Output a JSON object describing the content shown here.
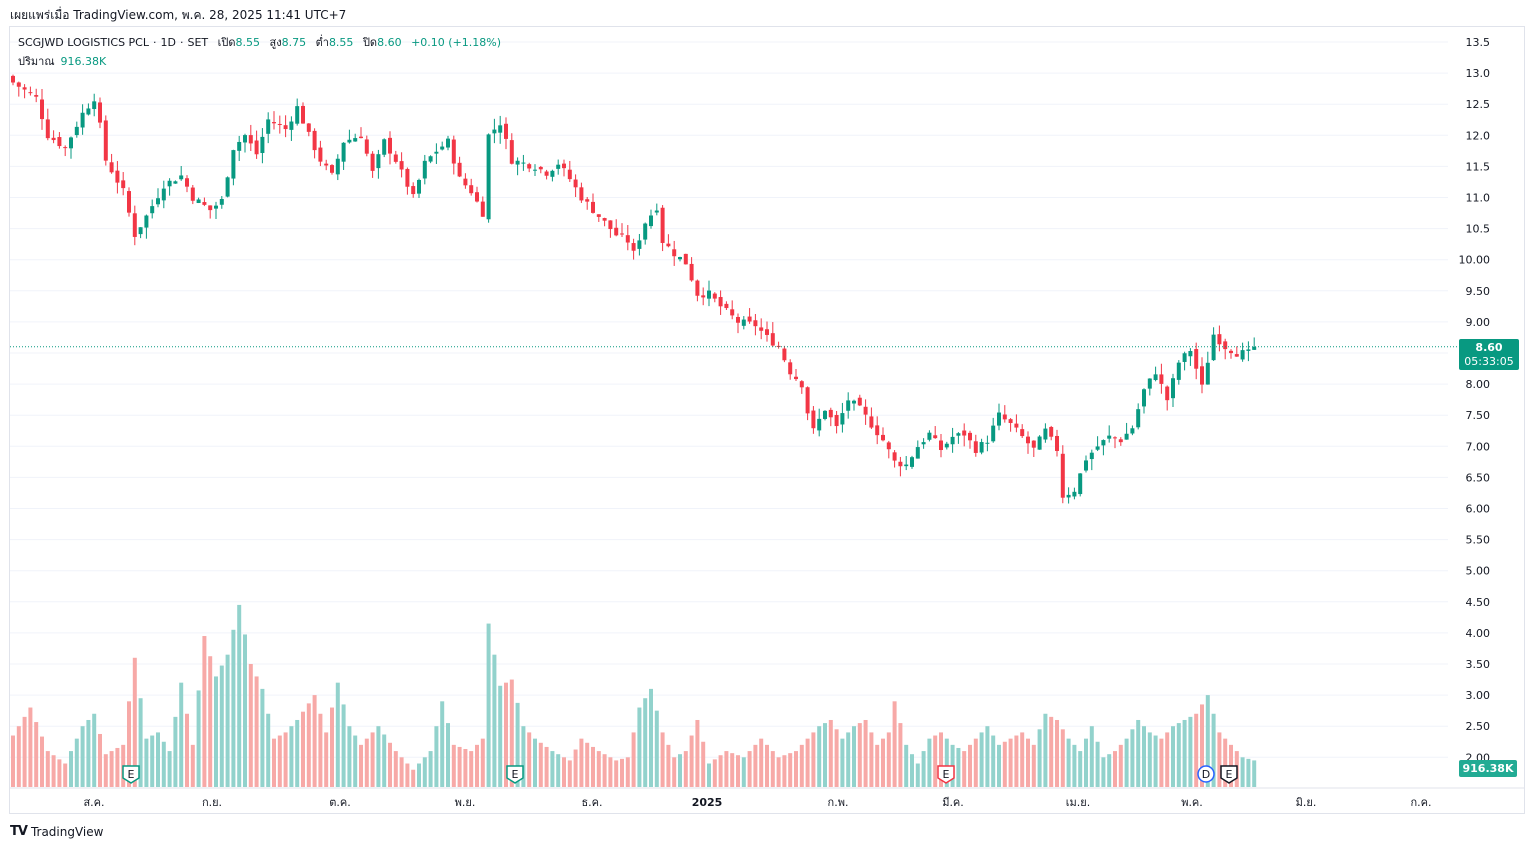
{
  "published": "เผยแพร่เมื่อ TradingView.com, พ.ค. 28, 2025 11:41 UTC+7",
  "legend": {
    "symbol": "SCGJWD LOGISTICS PCL",
    "interval": "1D",
    "exchange": "SET",
    "open_label": "เปิด",
    "open": "8.55",
    "high_label": "สูง",
    "high": "8.75",
    "low_label": "ต่ำ",
    "low": "8.55",
    "close_label": "ปิด",
    "close": "8.60",
    "change": "+0.10 (+1.18%)",
    "volume_label": "ปริมาณ",
    "volume": "916.38K"
  },
  "price_tag": {
    "price": "8.60",
    "countdown": "05:33:05"
  },
  "volume_tag": "916.38K",
  "brand": {
    "logo": "TV",
    "name": "TradingView"
  },
  "colors": {
    "up": "#089981",
    "down": "#f23645",
    "up_vol": "#92d2cc",
    "down_vol": "#f7a9a7",
    "grid": "#f0f3fa"
  },
  "chart_data": {
    "type": "candlestick",
    "y_axis": {
      "ticks": [
        "13.5",
        "13.0",
        "12.5",
        "12.0",
        "11.5",
        "11.0",
        "10.5",
        "10.00",
        "9.50",
        "9.00",
        "8.50",
        "8.00",
        "7.50",
        "7.00",
        "6.50",
        "6.00",
        "5.50",
        "5.00",
        "4.50",
        "4.00",
        "3.50",
        "3.00",
        "2.50",
        "2.00"
      ],
      "range": [
        1.5,
        13.75
      ]
    },
    "x_axis": {
      "ticks": [
        "ส.ค.",
        "ก.ย.",
        "ต.ค.",
        "พ.ย.",
        "ธ.ค.",
        "2025",
        "ก.พ.",
        "มี.ค.",
        "เม.ย.",
        "พ.ค.",
        "มิ.ย.",
        "ก.ค."
      ]
    },
    "last_price": 8.6,
    "events": [
      {
        "label": "E",
        "kind": "earnings",
        "near": "ส.ค."
      },
      {
        "label": "E",
        "kind": "earnings",
        "near": "พ.ย."
      },
      {
        "label": "E",
        "kind": "earnings",
        "near": "มี.ค."
      },
      {
        "label": "D",
        "kind": "dividend",
        "near": "พ.ค."
      },
      {
        "label": "E",
        "kind": "earnings",
        "near": "พ.ค."
      }
    ],
    "close_path": [
      [
        0,
        12.85
      ],
      [
        4,
        12.6
      ],
      [
        6,
        12.0
      ],
      [
        9,
        11.8
      ],
      [
        12,
        12.35
      ],
      [
        14,
        12.6
      ],
      [
        15,
        12.15
      ],
      [
        16,
        11.6
      ],
      [
        19,
        11.1
      ],
      [
        21,
        10.4
      ],
      [
        23,
        10.7
      ],
      [
        26,
        11.2
      ],
      [
        29,
        11.35
      ],
      [
        31,
        11.0
      ],
      [
        34,
        10.8
      ],
      [
        36,
        10.95
      ],
      [
        38,
        11.8
      ],
      [
        40,
        12.0
      ],
      [
        42,
        11.7
      ],
      [
        44,
        12.25
      ],
      [
        47,
        12.1
      ],
      [
        49,
        12.45
      ],
      [
        51,
        12.0
      ],
      [
        53,
        11.6
      ],
      [
        55,
        11.35
      ],
      [
        57,
        11.9
      ],
      [
        60,
        12.0
      ],
      [
        62,
        11.4
      ],
      [
        64,
        11.9
      ],
      [
        66,
        11.6
      ],
      [
        69,
        11.0
      ],
      [
        71,
        11.55
      ],
      [
        73,
        11.75
      ],
      [
        75,
        11.9
      ],
      [
        77,
        11.3
      ],
      [
        79,
        11.1
      ],
      [
        81,
        10.75
      ],
      [
        82,
        12.0
      ],
      [
        84,
        12.2
      ],
      [
        86,
        11.6
      ],
      [
        88,
        11.55
      ],
      [
        90,
        11.5
      ],
      [
        92,
        11.4
      ],
      [
        94,
        11.55
      ],
      [
        96,
        11.3
      ],
      [
        98,
        11.0
      ],
      [
        100,
        10.8
      ],
      [
        102,
        10.6
      ],
      [
        104,
        10.4
      ],
      [
        106,
        10.3
      ],
      [
        107,
        10.1
      ],
      [
        109,
        10.6
      ],
      [
        111,
        10.85
      ],
      [
        112,
        10.3
      ],
      [
        114,
        10.1
      ],
      [
        116,
        9.95
      ],
      [
        118,
        9.45
      ],
      [
        120,
        9.45
      ],
      [
        122,
        9.25
      ],
      [
        125,
        9.0
      ],
      [
        128,
        8.95
      ],
      [
        130,
        8.75
      ],
      [
        132,
        8.6
      ],
      [
        134,
        8.2
      ],
      [
        136,
        8.0
      ],
      [
        137,
        7.55
      ],
      [
        138,
        7.25
      ],
      [
        140,
        7.6
      ],
      [
        142,
        7.3
      ],
      [
        144,
        7.75
      ],
      [
        146,
        7.6
      ],
      [
        148,
        7.35
      ],
      [
        150,
        7.1
      ],
      [
        152,
        6.75
      ],
      [
        154,
        6.7
      ],
      [
        156,
        7.0
      ],
      [
        158,
        7.2
      ],
      [
        160,
        6.95
      ],
      [
        162,
        7.15
      ],
      [
        164,
        7.2
      ],
      [
        166,
        6.95
      ],
      [
        168,
        7.1
      ],
      [
        170,
        7.5
      ],
      [
        172,
        7.35
      ],
      [
        174,
        7.15
      ],
      [
        176,
        6.95
      ],
      [
        178,
        7.25
      ],
      [
        180,
        6.95
      ],
      [
        181,
        6.2
      ],
      [
        183,
        6.3
      ],
      [
        185,
        6.8
      ],
      [
        187,
        7.0
      ],
      [
        189,
        7.15
      ],
      [
        191,
        7.1
      ],
      [
        193,
        7.3
      ],
      [
        195,
        7.9
      ],
      [
        197,
        8.2
      ],
      [
        199,
        7.75
      ],
      [
        201,
        8.35
      ],
      [
        203,
        8.55
      ],
      [
        205,
        7.95
      ],
      [
        207,
        8.8
      ],
      [
        209,
        8.6
      ],
      [
        211,
        8.5
      ],
      [
        213,
        8.5
      ],
      [
        214,
        8.6
      ]
    ],
    "volume_path": [
      [
        0,
        2.35
      ],
      [
        3,
        2.8
      ],
      [
        6,
        2.1
      ],
      [
        9,
        1.9
      ],
      [
        12,
        2.5
      ],
      [
        14,
        2.7
      ],
      [
        16,
        2.05
      ],
      [
        19,
        2.2
      ],
      [
        21,
        3.6
      ],
      [
        23,
        2.3
      ],
      [
        25,
        2.4
      ],
      [
        27,
        2.1
      ],
      [
        29,
        3.2
      ],
      [
        31,
        2.2
      ],
      [
        33,
        3.95
      ],
      [
        35,
        3.3
      ],
      [
        37,
        3.65
      ],
      [
        39,
        4.45
      ],
      [
        41,
        3.5
      ],
      [
        43,
        3.1
      ],
      [
        45,
        2.3
      ],
      [
        47,
        2.4
      ],
      [
        49,
        2.6
      ],
      [
        52,
        3.0
      ],
      [
        54,
        2.4
      ],
      [
        56,
        3.2
      ],
      [
        58,
        2.5
      ],
      [
        60,
        2.2
      ],
      [
        63,
        2.5
      ],
      [
        66,
        2.1
      ],
      [
        69,
        1.8
      ],
      [
        72,
        2.1
      ],
      [
        74,
        2.9
      ],
      [
        76,
        2.2
      ],
      [
        79,
        2.1
      ],
      [
        81,
        2.3
      ],
      [
        82,
        4.15
      ],
      [
        84,
        3.15
      ],
      [
        86,
        3.25
      ],
      [
        88,
        2.5
      ],
      [
        90,
        2.3
      ],
      [
        93,
        2.1
      ],
      [
        96,
        1.95
      ],
      [
        98,
        2.3
      ],
      [
        101,
        2.1
      ],
      [
        104,
        1.95
      ],
      [
        106,
        2.0
      ],
      [
        108,
        2.8
      ],
      [
        110,
        3.1
      ],
      [
        112,
        2.4
      ],
      [
        114,
        2.0
      ],
      [
        116,
        2.1
      ],
      [
        118,
        2.6
      ],
      [
        120,
        1.9
      ],
      [
        123,
        2.1
      ],
      [
        126,
        2.0
      ],
      [
        129,
        2.3
      ],
      [
        132,
        2.0
      ],
      [
        135,
        2.1
      ],
      [
        137,
        2.3
      ],
      [
        139,
        2.5
      ],
      [
        141,
        2.6
      ],
      [
        143,
        2.3
      ],
      [
        145,
        2.5
      ],
      [
        147,
        2.6
      ],
      [
        149,
        2.2
      ],
      [
        151,
        2.4
      ],
      [
        152,
        2.9
      ],
      [
        154,
        2.2
      ],
      [
        156,
        1.9
      ],
      [
        158,
        2.3
      ],
      [
        160,
        2.4
      ],
      [
        162,
        2.2
      ],
      [
        164,
        2.1
      ],
      [
        166,
        2.3
      ],
      [
        168,
        2.5
      ],
      [
        170,
        2.2
      ],
      [
        172,
        2.3
      ],
      [
        174,
        2.4
      ],
      [
        176,
        2.2
      ],
      [
        178,
        2.7
      ],
      [
        180,
        2.6
      ],
      [
        182,
        2.3
      ],
      [
        184,
        2.1
      ],
      [
        186,
        2.5
      ],
      [
        188,
        2.0
      ],
      [
        190,
        2.1
      ],
      [
        192,
        2.3
      ],
      [
        194,
        2.6
      ],
      [
        196,
        2.4
      ],
      [
        198,
        2.3
      ],
      [
        200,
        2.5
      ],
      [
        202,
        2.6
      ],
      [
        204,
        2.7
      ],
      [
        206,
        3.0
      ],
      [
        208,
        2.4
      ],
      [
        210,
        2.2
      ],
      [
        212,
        2.0
      ],
      [
        214,
        1.95
      ]
    ]
  }
}
